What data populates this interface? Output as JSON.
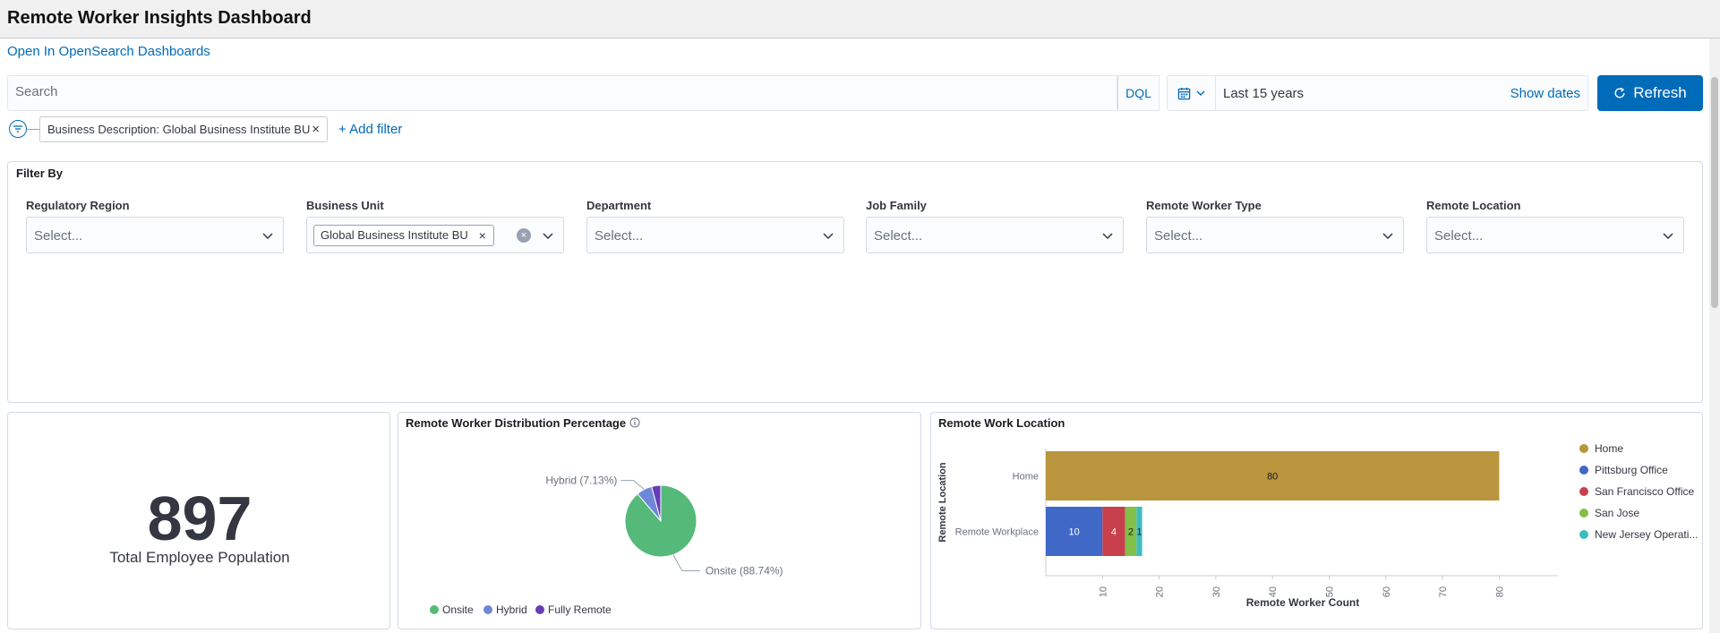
{
  "header": {
    "title": "Remote Worker Insights Dashboard",
    "open_link": "Open In OpenSearch Dashboards"
  },
  "query_bar": {
    "search_placeholder": "Search",
    "language": "DQL",
    "date_range": "Last 15 years",
    "show_dates": "Show dates",
    "refresh_label": "Refresh"
  },
  "filters": {
    "active": [
      {
        "label": "Business Description: Global Business Institute BU"
      }
    ],
    "add_filter": "+ Add filter"
  },
  "filter_by": {
    "title": "Filter By",
    "controls": [
      {
        "label": "Regulatory Region",
        "placeholder": "Select...",
        "selected": null
      },
      {
        "label": "Business Unit",
        "placeholder": "Select...",
        "selected": "Global Business Institute BU"
      },
      {
        "label": "Department",
        "placeholder": "Select...",
        "selected": null
      },
      {
        "label": "Job Family",
        "placeholder": "Select...",
        "selected": null
      },
      {
        "label": "Remote Worker Type",
        "placeholder": "Select...",
        "selected": null
      },
      {
        "label": "Remote Location",
        "placeholder": "Select...",
        "selected": null
      }
    ]
  },
  "metric": {
    "value": "897",
    "label": "Total Employee Population"
  },
  "pie_panel": {
    "title": "Remote Worker Distribution Percentage"
  },
  "bar_panel": {
    "title": "Remote Work Location"
  },
  "chart_data": [
    {
      "type": "pie",
      "title": "Remote Worker Distribution Percentage",
      "slices": [
        {
          "label": "Onsite",
          "value": 88.74,
          "callout": "Onsite (88.74%)",
          "color": "#54b979"
        },
        {
          "label": "Hybrid",
          "value": 7.13,
          "callout": "Hybrid (7.13%)",
          "color": "#6f87d8"
        },
        {
          "label": "Fully Remote",
          "value": 4.13,
          "callout": "",
          "color": "#663db8"
        }
      ],
      "legend": [
        "Onsite",
        "Hybrid",
        "Fully Remote"
      ],
      "legend_position": "bottom"
    },
    {
      "type": "bar",
      "orientation": "horizontal",
      "stacked": true,
      "title": "Remote Work Location",
      "categories": [
        "Home",
        "Remote Workplace"
      ],
      "xlabel": "Remote Worker Count",
      "ylabel": "Remote Location",
      "xlim": [
        0,
        90
      ],
      "xticks": [
        10,
        20,
        30,
        40,
        50,
        60,
        70,
        80
      ],
      "series": [
        {
          "name": "Home",
          "color": "#b9953e",
          "values": [
            80,
            0
          ]
        },
        {
          "name": "Pittsburg Office",
          "color": "#3f68c7",
          "values": [
            0,
            10
          ]
        },
        {
          "name": "San Francisco Office",
          "color": "#c9404d",
          "values": [
            0,
            4
          ]
        },
        {
          "name": "San Jose",
          "color": "#82c04a",
          "values": [
            0,
            2
          ]
        },
        {
          "name": "New Jersey Operati...",
          "color": "#3fbdbd",
          "values": [
            0,
            1
          ]
        }
      ],
      "legend_position": "right"
    }
  ],
  "colors": {
    "accent": "#006bb8",
    "border": "#d3dae6"
  },
  "icons": {
    "calendar": "calendar-icon",
    "refresh": "refresh-icon",
    "filter": "filter-icon",
    "info": "info-icon",
    "chevron": "chevron-down-icon",
    "close": "close-icon"
  }
}
